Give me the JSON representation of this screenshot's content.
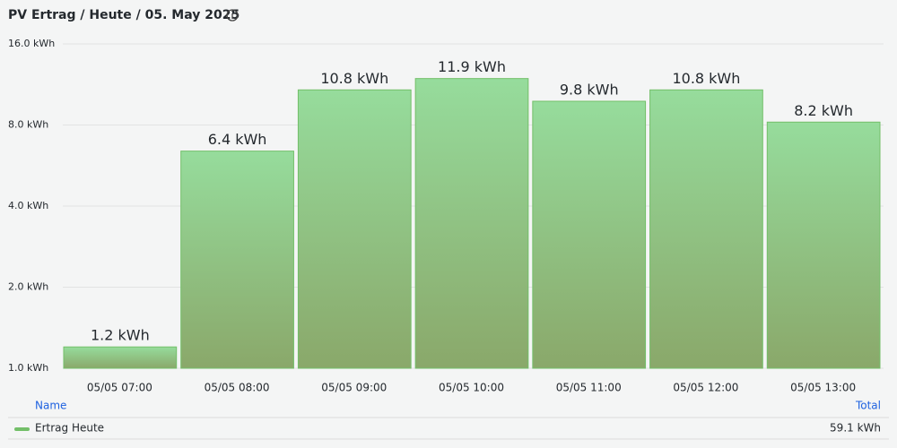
{
  "chart_data": {
    "type": "bar",
    "title": "PV Ertrag / Heute / 05. May 2025",
    "categories": [
      "05/05 07:00",
      "05/05 08:00",
      "05/05 09:00",
      "05/05 10:00",
      "05/05 11:00",
      "05/05 12:00",
      "05/05 13:00"
    ],
    "series": [
      {
        "name": "Ertrag Heute",
        "color": "#73bf69",
        "values": [
          1.2,
          6.4,
          10.8,
          11.9,
          9.8,
          10.8,
          8.2
        ],
        "value_labels": [
          "1.2 kWh",
          "6.4 kWh",
          "10.8 kWh",
          "11.9 kWh",
          "9.8 kWh",
          "10.8 kWh",
          "8.2 kWh"
        ]
      }
    ],
    "ylim": [
      1,
      16
    ],
    "log_scale": true,
    "log_base": 2,
    "yticks": [
      {
        "value": 1,
        "label": "1.0 kWh"
      },
      {
        "value": 2,
        "label": "2.0 kWh"
      },
      {
        "value": 4,
        "label": "4.0 kWh"
      },
      {
        "value": 8,
        "label": "8.0 kWh"
      },
      {
        "value": 16,
        "label": "16.0 kWh"
      }
    ],
    "grid": true,
    "legend": {
      "columns": [
        "Name",
        "Total"
      ],
      "totals": [
        "59.1 kWh"
      ]
    }
  }
}
